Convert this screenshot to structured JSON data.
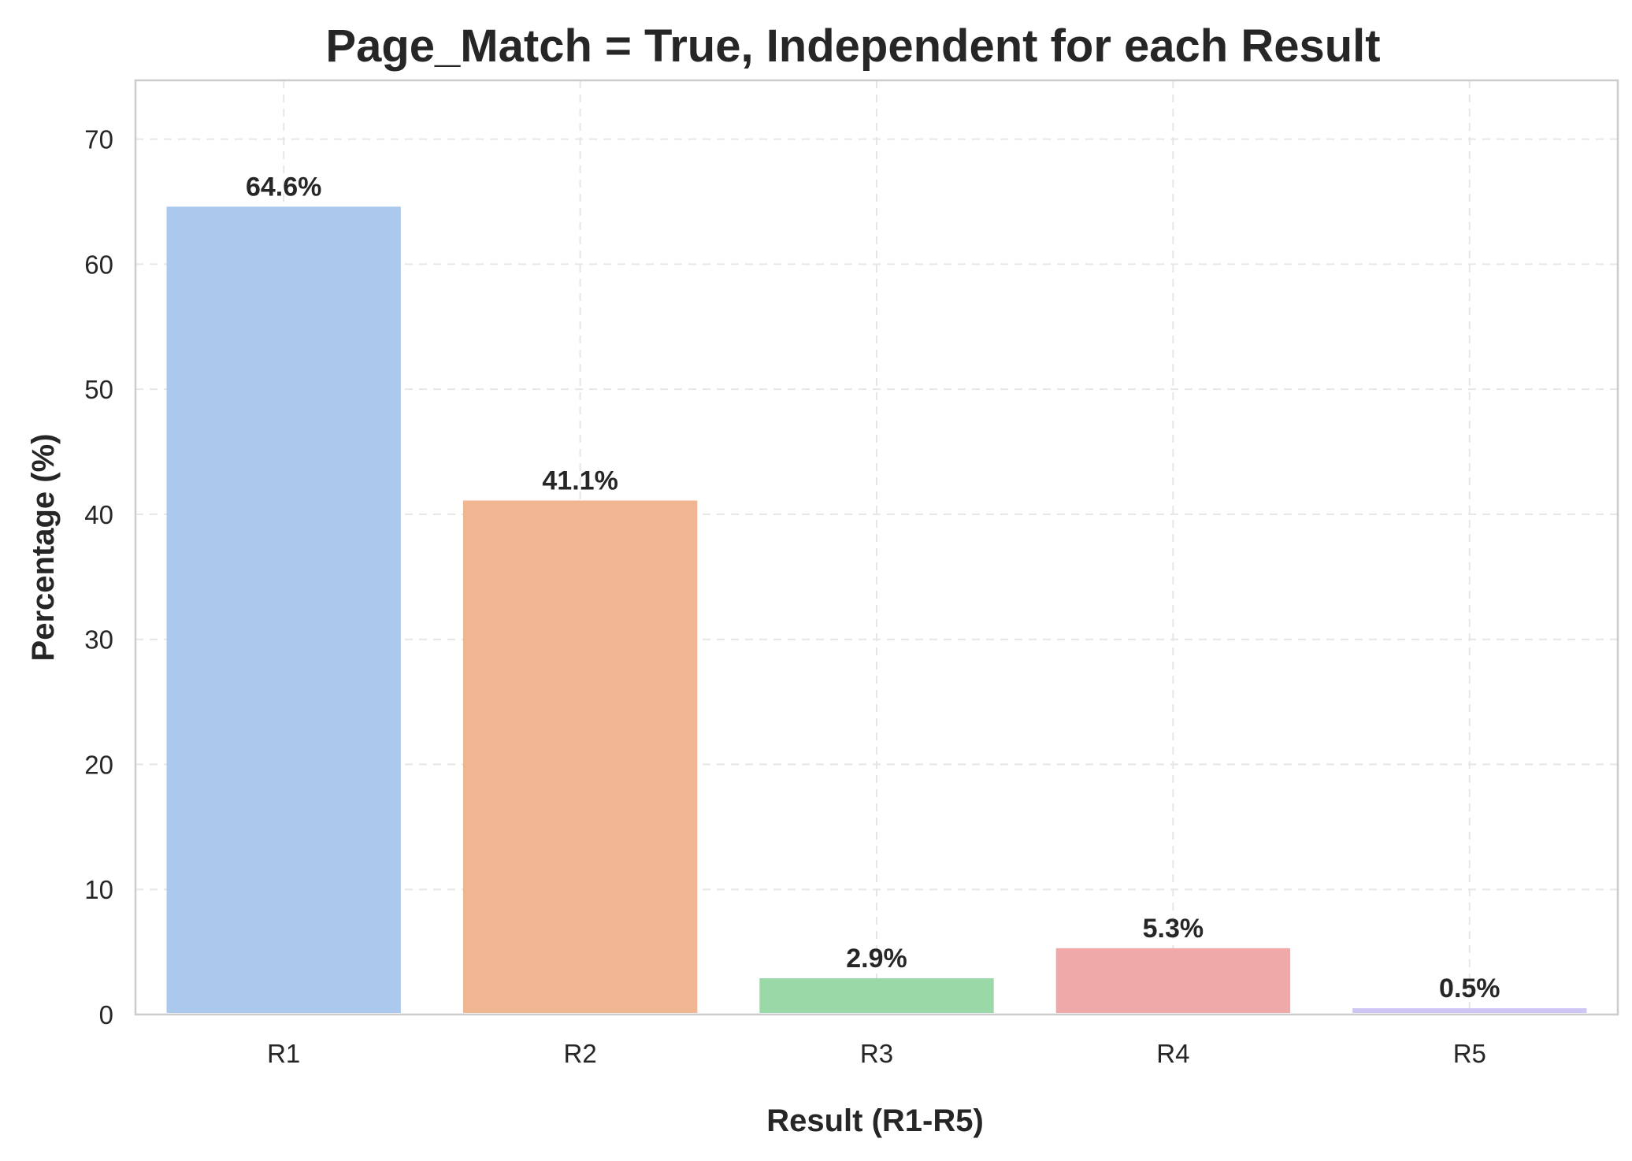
{
  "chart_data": {
    "type": "bar",
    "title": "Page_Match = True, Independent for each Result",
    "xlabel": "Result (R1-R5)",
    "ylabel": "Percentage (%)",
    "categories": [
      "R1",
      "R2",
      "R3",
      "R4",
      "R5"
    ],
    "values": [
      64.6,
      41.1,
      2.9,
      5.3,
      0.5
    ],
    "data_labels": [
      "64.6%",
      "41.1%",
      "2.9%",
      "5.3%",
      "0.5%"
    ],
    "colors": [
      "#abc9ec",
      "#f0b691",
      "#9ad9a7",
      "#f0a9a9",
      "#d0c6f5"
    ],
    "ylim": [
      0,
      74.7
    ],
    "yticks": [
      0,
      10,
      20,
      30,
      40,
      50,
      60,
      70
    ],
    "grid": true,
    "legend": "none"
  }
}
